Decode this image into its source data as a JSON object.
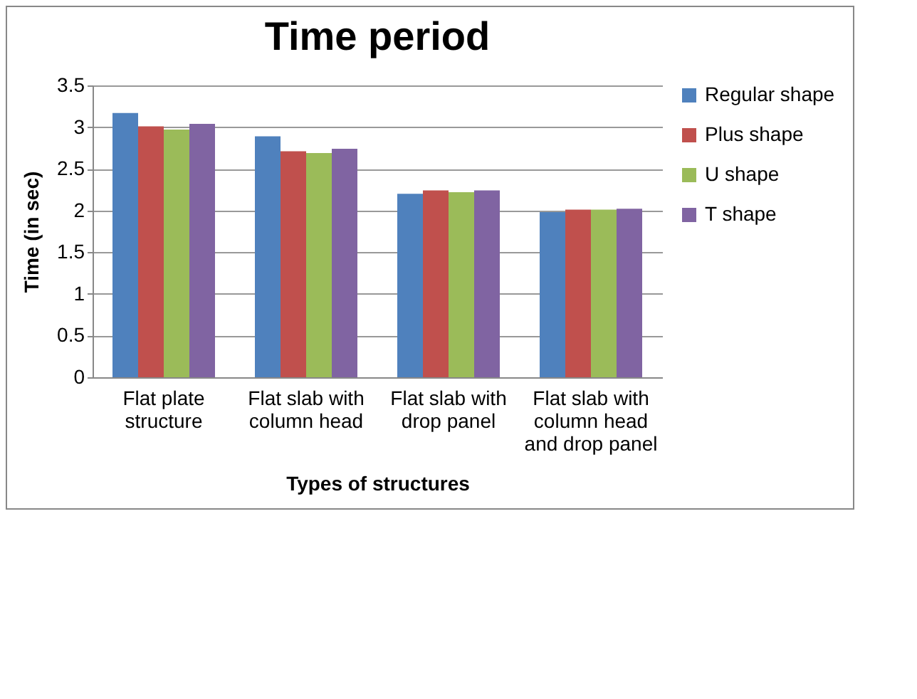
{
  "chart_data": {
    "type": "bar",
    "title": "Time period",
    "xlabel": "Types of structures",
    "ylabel": "Time (in sec)",
    "categories": [
      "Flat plate structure",
      "Flat slab with column head",
      "Flat slab with drop panel",
      "Flat slab with column head and drop panel"
    ],
    "series": [
      {
        "name": "Regular shape",
        "color": "#4f81bd",
        "values": [
          3.17,
          2.89,
          2.2,
          1.98
        ]
      },
      {
        "name": "Plus shape",
        "color": "#c0504d",
        "values": [
          3.01,
          2.71,
          2.24,
          2.01
        ]
      },
      {
        "name": "U shape",
        "color": "#9bbb59",
        "values": [
          2.97,
          2.69,
          2.22,
          2.01
        ]
      },
      {
        "name": "T shape",
        "color": "#8064a2",
        "values": [
          3.04,
          2.74,
          2.24,
          2.02
        ]
      }
    ],
    "ylim": [
      0,
      3.5
    ],
    "yticks": [
      0,
      0.5,
      1,
      1.5,
      2,
      2.5,
      3,
      3.5
    ],
    "grid": "y",
    "legend": "right"
  }
}
